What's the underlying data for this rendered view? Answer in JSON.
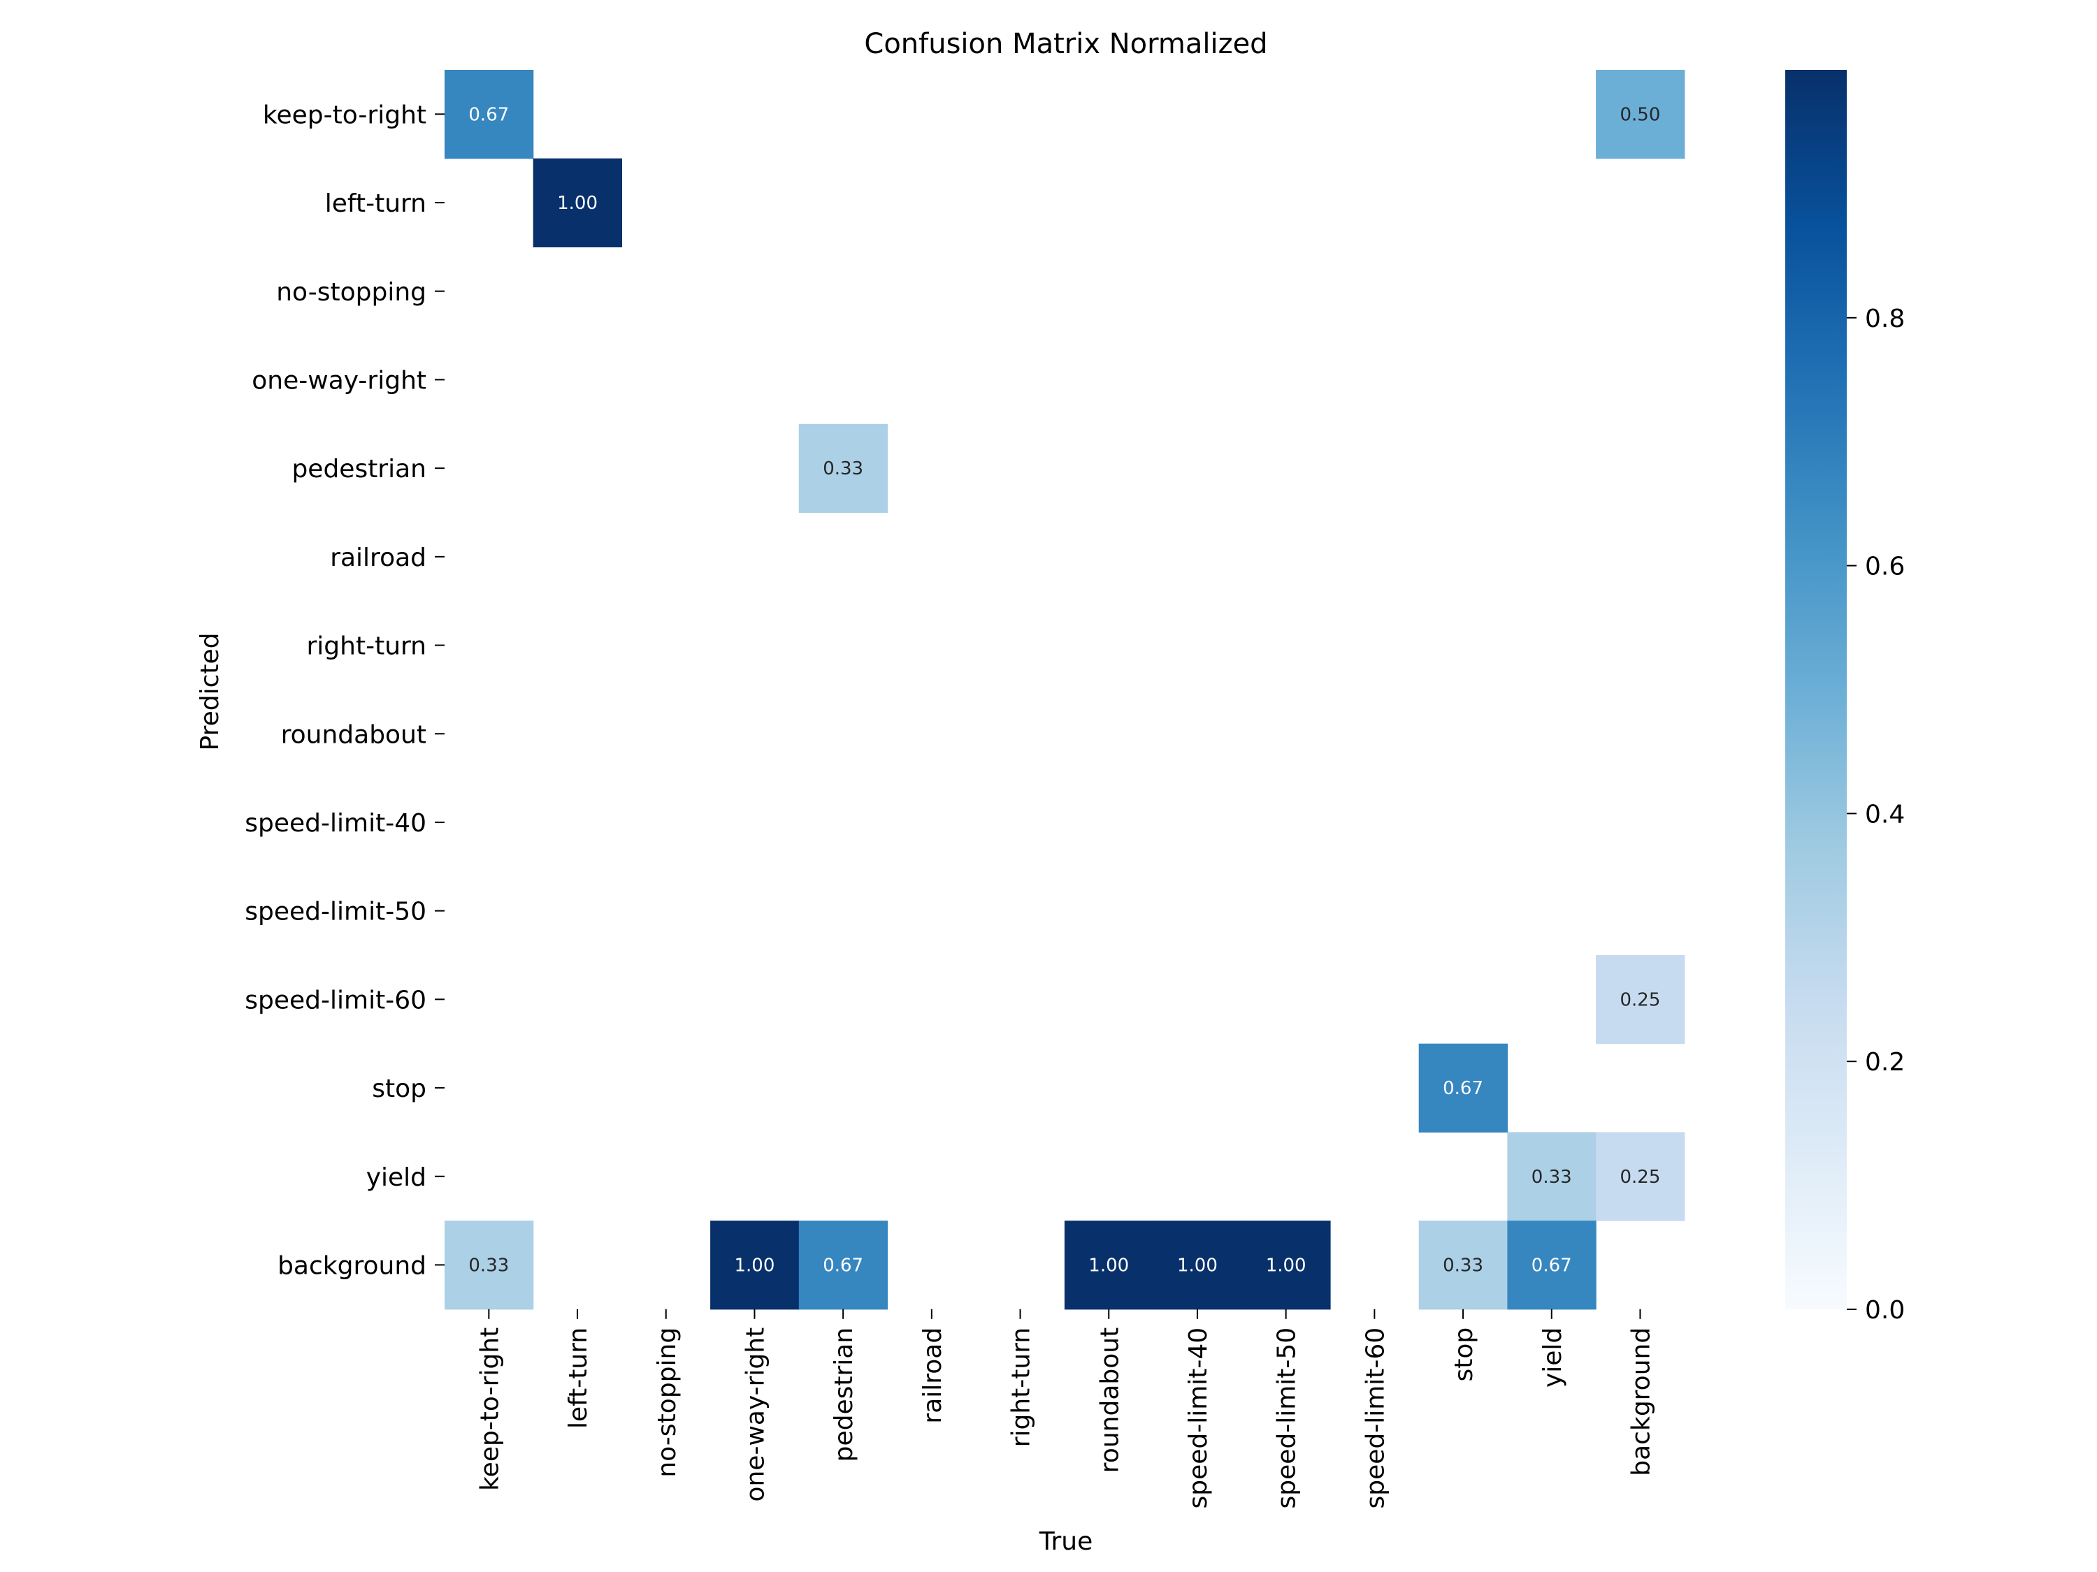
{
  "chart_data": {
    "type": "heatmap",
    "title": "Confusion Matrix Normalized",
    "xlabel": "True",
    "ylabel": "Predicted",
    "x_categories": [
      "keep-to-right",
      "left-turn",
      "no-stopping",
      "one-way-right",
      "pedestrian",
      "railroad",
      "right-turn",
      "roundabout",
      "speed-limit-40",
      "speed-limit-50",
      "speed-limit-60",
      "stop",
      "yield",
      "background"
    ],
    "y_categories": [
      "keep-to-right",
      "left-turn",
      "no-stopping",
      "one-way-right",
      "pedestrian",
      "railroad",
      "right-turn",
      "roundabout",
      "speed-limit-40",
      "speed-limit-50",
      "speed-limit-60",
      "stop",
      "yield",
      "background"
    ],
    "values": [
      [
        0.67,
        null,
        null,
        null,
        null,
        null,
        null,
        null,
        null,
        null,
        null,
        null,
        null,
        0.5
      ],
      [
        null,
        1.0,
        null,
        null,
        null,
        null,
        null,
        null,
        null,
        null,
        null,
        null,
        null,
        null
      ],
      [
        null,
        null,
        null,
        null,
        null,
        null,
        null,
        null,
        null,
        null,
        null,
        null,
        null,
        null
      ],
      [
        null,
        null,
        null,
        null,
        null,
        null,
        null,
        null,
        null,
        null,
        null,
        null,
        null,
        null
      ],
      [
        null,
        null,
        null,
        null,
        0.33,
        null,
        null,
        null,
        null,
        null,
        null,
        null,
        null,
        null
      ],
      [
        null,
        null,
        null,
        null,
        null,
        null,
        null,
        null,
        null,
        null,
        null,
        null,
        null,
        null
      ],
      [
        null,
        null,
        null,
        null,
        null,
        null,
        null,
        null,
        null,
        null,
        null,
        null,
        null,
        null
      ],
      [
        null,
        null,
        null,
        null,
        null,
        null,
        null,
        null,
        null,
        null,
        null,
        null,
        null,
        null
      ],
      [
        null,
        null,
        null,
        null,
        null,
        null,
        null,
        null,
        null,
        null,
        null,
        null,
        null,
        null
      ],
      [
        null,
        null,
        null,
        null,
        null,
        null,
        null,
        null,
        null,
        null,
        null,
        null,
        null,
        null
      ],
      [
        null,
        null,
        null,
        null,
        null,
        null,
        null,
        null,
        null,
        null,
        null,
        null,
        null,
        0.25
      ],
      [
        null,
        null,
        null,
        null,
        null,
        null,
        null,
        null,
        null,
        null,
        null,
        0.67,
        null,
        null
      ],
      [
        null,
        null,
        null,
        null,
        null,
        null,
        null,
        null,
        null,
        null,
        null,
        null,
        0.33,
        0.25
      ],
      [
        0.33,
        null,
        null,
        1.0,
        0.67,
        null,
        null,
        1.0,
        1.0,
        1.0,
        null,
        0.33,
        0.67,
        null
      ]
    ],
    "value_format": "0.00",
    "colormap": "Blues",
    "colorbar": {
      "range": [
        0,
        1
      ],
      "ticks": [
        0.0,
        0.2,
        0.4,
        0.6,
        0.8
      ],
      "tick_labels": [
        "0.0",
        "0.2",
        "0.4",
        "0.6",
        "0.8"
      ]
    },
    "grid": false,
    "legend": "colorbar-right"
  }
}
